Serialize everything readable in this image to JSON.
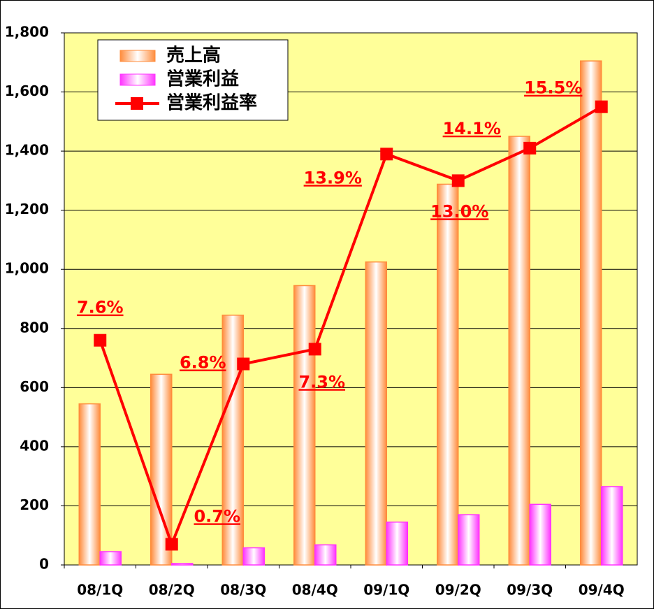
{
  "chart_data": {
    "type": "bar-line",
    "categories": [
      "08/1Q",
      "08/2Q",
      "08/3Q",
      "08/4Q",
      "09/1Q",
      "09/2Q",
      "09/3Q",
      "09/4Q"
    ],
    "series": [
      {
        "name": "売上高",
        "color": "#ff8c3c",
        "type": "bar",
        "values": [
          545,
          645,
          845,
          945,
          1025,
          1288,
          1450,
          1705
        ]
      },
      {
        "name": "営業利益",
        "color": "#ff33ff",
        "type": "bar",
        "values": [
          45,
          5,
          58,
          68,
          145,
          170,
          205,
          265
        ]
      },
      {
        "name": "営業利益率",
        "color": "#ff0000",
        "type": "line",
        "axis": "y2",
        "values": [
          7.6,
          0.7,
          6.8,
          7.3,
          13.9,
          13.0,
          14.1,
          15.5
        ],
        "value_labels": [
          "7.6%",
          "0.7%",
          "6.8%",
          "7.3%",
          "13.9%",
          "13.0%",
          "14.1%",
          "15.5%"
        ]
      }
    ],
    "ylim": [
      0,
      1800
    ],
    "yticks": [
      0,
      {
        "value": 200,
        "label": "200"
      },
      400,
      600,
      800,
      {
        "value": 1000,
        "label": "1,000"
      },
      {
        "value": 1200,
        "label": "1,200"
      },
      {
        "value": 1400,
        "label": "1,400"
      },
      {
        "value": 1600,
        "label": "1,600"
      },
      {
        "value": 1800,
        "label": "1,800"
      }
    ],
    "y2lim": [
      0,
      18
    ],
    "grid": true,
    "legend": "upper left",
    "background": "#ffff99"
  }
}
